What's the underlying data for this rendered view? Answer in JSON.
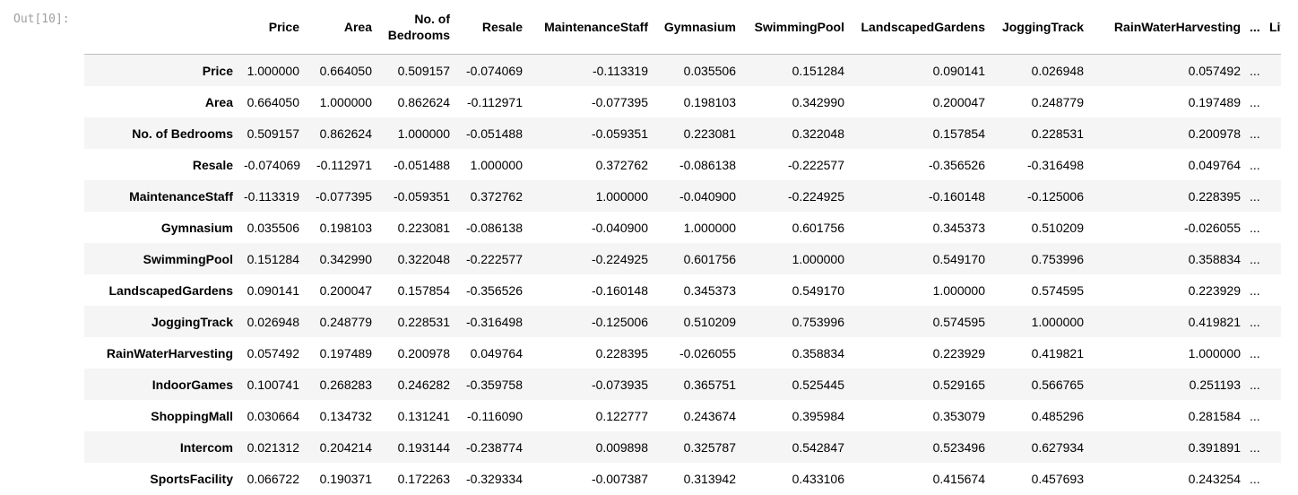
{
  "prompt": "Out[10]:",
  "columns": [
    "Price",
    "Area",
    "No. of Bedrooms",
    "Resale",
    "MaintenanceStaff",
    "Gymnasium",
    "SwimmingPool",
    "LandscapedGardens",
    "JoggingTrack",
    "RainWaterHarvesting",
    "...",
    "Lif"
  ],
  "rows": [
    {
      "label": "Price",
      "values": [
        "1.000000",
        "0.664050",
        "0.509157",
        "-0.074069",
        "-0.113319",
        "0.035506",
        "0.151284",
        "0.090141",
        "0.026948",
        "0.057492",
        "..."
      ]
    },
    {
      "label": "Area",
      "values": [
        "0.664050",
        "1.000000",
        "0.862624",
        "-0.112971",
        "-0.077395",
        "0.198103",
        "0.342990",
        "0.200047",
        "0.248779",
        "0.197489",
        "..."
      ]
    },
    {
      "label": "No. of Bedrooms",
      "values": [
        "0.509157",
        "0.862624",
        "1.000000",
        "-0.051488",
        "-0.059351",
        "0.223081",
        "0.322048",
        "0.157854",
        "0.228531",
        "0.200978",
        "..."
      ]
    },
    {
      "label": "Resale",
      "values": [
        "-0.074069",
        "-0.112971",
        "-0.051488",
        "1.000000",
        "0.372762",
        "-0.086138",
        "-0.222577",
        "-0.356526",
        "-0.316498",
        "0.049764",
        "..."
      ]
    },
    {
      "label": "MaintenanceStaff",
      "values": [
        "-0.113319",
        "-0.077395",
        "-0.059351",
        "0.372762",
        "1.000000",
        "-0.040900",
        "-0.224925",
        "-0.160148",
        "-0.125006",
        "0.228395",
        "..."
      ]
    },
    {
      "label": "Gymnasium",
      "values": [
        "0.035506",
        "0.198103",
        "0.223081",
        "-0.086138",
        "-0.040900",
        "1.000000",
        "0.601756",
        "0.345373",
        "0.510209",
        "-0.026055",
        "..."
      ]
    },
    {
      "label": "SwimmingPool",
      "values": [
        "0.151284",
        "0.342990",
        "0.322048",
        "-0.222577",
        "-0.224925",
        "0.601756",
        "1.000000",
        "0.549170",
        "0.753996",
        "0.358834",
        "..."
      ]
    },
    {
      "label": "LandscapedGardens",
      "values": [
        "0.090141",
        "0.200047",
        "0.157854",
        "-0.356526",
        "-0.160148",
        "0.345373",
        "0.549170",
        "1.000000",
        "0.574595",
        "0.223929",
        "..."
      ]
    },
    {
      "label": "JoggingTrack",
      "values": [
        "0.026948",
        "0.248779",
        "0.228531",
        "-0.316498",
        "-0.125006",
        "0.510209",
        "0.753996",
        "0.574595",
        "1.000000",
        "0.419821",
        "..."
      ]
    },
    {
      "label": "RainWaterHarvesting",
      "values": [
        "0.057492",
        "0.197489",
        "0.200978",
        "0.049764",
        "0.228395",
        "-0.026055",
        "0.358834",
        "0.223929",
        "0.419821",
        "1.000000",
        "..."
      ]
    },
    {
      "label": "IndoorGames",
      "values": [
        "0.100741",
        "0.268283",
        "0.246282",
        "-0.359758",
        "-0.073935",
        "0.365751",
        "0.525445",
        "0.529165",
        "0.566765",
        "0.251193",
        "..."
      ]
    },
    {
      "label": "ShoppingMall",
      "values": [
        "0.030664",
        "0.134732",
        "0.131241",
        "-0.116090",
        "0.122777",
        "0.243674",
        "0.395984",
        "0.353079",
        "0.485296",
        "0.281584",
        "..."
      ]
    },
    {
      "label": "Intercom",
      "values": [
        "0.021312",
        "0.204214",
        "0.193144",
        "-0.238774",
        "0.009898",
        "0.325787",
        "0.542847",
        "0.523496",
        "0.627934",
        "0.391891",
        "..."
      ]
    },
    {
      "label": "SportsFacility",
      "values": [
        "0.066722",
        "0.190371",
        "0.172263",
        "-0.329334",
        "-0.007387",
        "0.313942",
        "0.433106",
        "0.415674",
        "0.457693",
        "0.243254",
        "..."
      ]
    }
  ]
}
